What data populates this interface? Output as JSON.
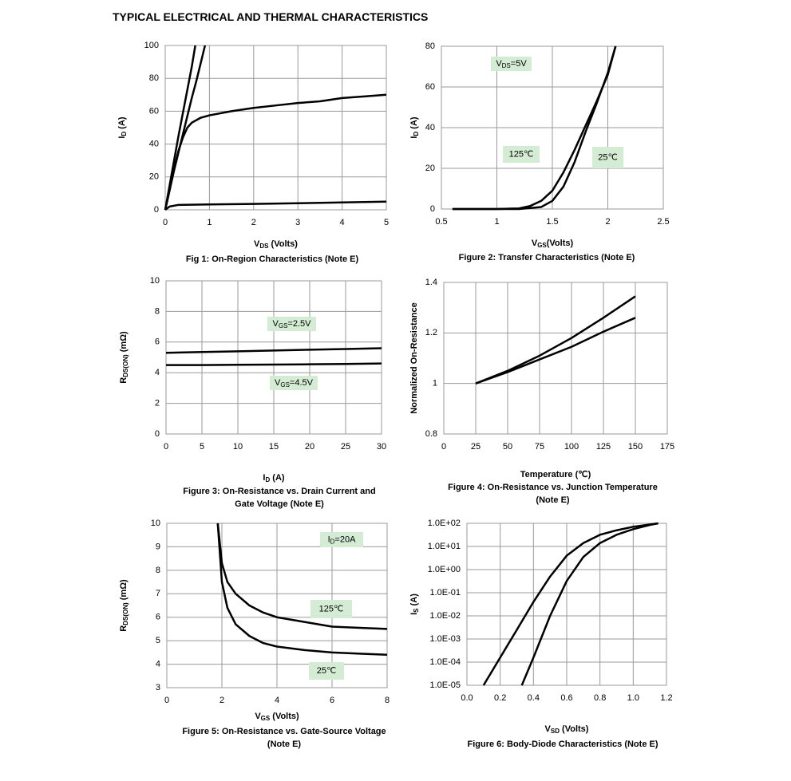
{
  "title": "TYPICAL ELECTRICAL AND THERMAL CHARACTERISTICS",
  "chart_data": [
    {
      "type": "line",
      "title": "Fig 1: On-Region Characteristics (Note E)",
      "xlabel": [
        {
          "text": "V"
        },
        {
          "text": "DS",
          "sub": true
        },
        {
          "text": " (Volts)"
        }
      ],
      "ylabel": [
        {
          "text": "I"
        },
        {
          "text": "D",
          "sub": true
        },
        {
          "text": " (A)"
        }
      ],
      "xlim": [
        0,
        5
      ],
      "ylim": [
        0,
        100
      ],
      "xticks": [
        0,
        1,
        2,
        3,
        4,
        5
      ],
      "yticks": [
        0,
        20,
        40,
        60,
        80,
        100
      ],
      "grid": true,
      "series": [
        {
          "color": "#000000",
          "x": [
            0,
            0.1,
            0.2,
            0.3,
            0.4,
            0.5,
            0.6,
            0.68
          ],
          "values": [
            0,
            15,
            30,
            45,
            59,
            73,
            87,
            100
          ]
        },
        {
          "color": "#000000",
          "x": [
            0,
            0.1,
            0.2,
            0.3,
            0.4,
            0.5,
            0.6,
            0.7,
            0.8,
            0.9
          ],
          "values": [
            0,
            12,
            24,
            35,
            46,
            57,
            68,
            78,
            89,
            100
          ]
        },
        {
          "color": "#000000",
          "x": [
            0,
            0.1,
            0.2,
            0.3,
            0.4,
            0.5,
            0.6,
            0.8,
            1,
            1.5,
            2,
            2.5,
            3,
            3.5,
            4,
            4.5,
            5
          ],
          "values": [
            0,
            12,
            25,
            36,
            44,
            50,
            53,
            56,
            57.5,
            60,
            62,
            63.5,
            65,
            66,
            68,
            69,
            70
          ]
        },
        {
          "color": "#000000",
          "x": [
            0,
            0.1,
            0.3,
            1,
            2,
            3,
            4,
            5
          ],
          "values": [
            0,
            2,
            3,
            3.3,
            3.6,
            4,
            4.5,
            5
          ]
        }
      ]
    },
    {
      "type": "line",
      "title": "Figure 2: Transfer Characteristics (Note E)",
      "xlabel": [
        {
          "text": "V"
        },
        {
          "text": "GS",
          "sub": true
        },
        {
          "text": "(Volts)"
        }
      ],
      "ylabel": [
        {
          "text": "I"
        },
        {
          "text": "D",
          "sub": true
        },
        {
          "text": " (A)"
        }
      ],
      "annotations": [
        [
          {
            "text": "V"
          },
          {
            "text": "DS",
            "sub": true
          },
          {
            "text": "=5V"
          }
        ]
      ],
      "xlim": [
        0.5,
        2.5
      ],
      "ylim": [
        0,
        80
      ],
      "xticks": [
        0.5,
        1,
        1.5,
        2,
        2.5
      ],
      "yticks": [
        0,
        20,
        40,
        60,
        80
      ],
      "grid": true,
      "series": [
        {
          "name": "125℃",
          "color": "#000000",
          "x": [
            0.6,
            1.0,
            1.2,
            1.3,
            1.4,
            1.5,
            1.6,
            1.7,
            1.8,
            1.9,
            2.0,
            2.07
          ],
          "values": [
            0,
            0,
            0.3,
            1.5,
            4,
            9,
            18,
            29,
            41,
            53,
            66,
            80
          ]
        },
        {
          "name": "25℃",
          "color": "#000000",
          "x": [
            0.6,
            1.0,
            1.2,
            1.4,
            1.5,
            1.6,
            1.7,
            1.8,
            1.9,
            2.0,
            2.07
          ],
          "values": [
            0,
            0,
            0,
            1,
            4,
            11,
            23,
            38,
            52,
            67,
            80
          ]
        }
      ]
    },
    {
      "type": "line",
      "title": "Figure 3: On-Resistance vs. Drain Current and Gate Voltage (Note E)",
      "xlabel": [
        {
          "text": "I"
        },
        {
          "text": "D",
          "sub": true
        },
        {
          "text": " (A)"
        }
      ],
      "ylabel": [
        {
          "text": "R"
        },
        {
          "text": "DS(ON)",
          "sub": true
        },
        {
          "text": " (mΩ)"
        }
      ],
      "xlim": [
        0,
        30
      ],
      "ylim": [
        0,
        10
      ],
      "xticks": [
        0,
        5,
        10,
        15,
        20,
        25,
        30
      ],
      "yticks": [
        0,
        2,
        4,
        6,
        8,
        10
      ],
      "grid": true,
      "series": [
        {
          "name": [
            {
              "text": "V"
            },
            {
              "text": "GS",
              "sub": true
            },
            {
              "text": "=2.5V"
            }
          ],
          "color": "#000000",
          "x": [
            0,
            5,
            10,
            15,
            20,
            25,
            30
          ],
          "values": [
            5.3,
            5.35,
            5.4,
            5.45,
            5.5,
            5.55,
            5.6
          ]
        },
        {
          "name": [
            {
              "text": "V"
            },
            {
              "text": "GS",
              "sub": true
            },
            {
              "text": "=4.5V"
            }
          ],
          "color": "#000000",
          "x": [
            0,
            5,
            10,
            15,
            20,
            25,
            30
          ],
          "values": [
            4.5,
            4.5,
            4.52,
            4.53,
            4.55,
            4.57,
            4.6
          ]
        }
      ]
    },
    {
      "type": "line",
      "title": "Figure 4: On-Resistance vs. Junction Temperature (Note E)",
      "xlabel": "Temperature (℃)",
      "ylabel": "Normalized On-Resistance",
      "xlim": [
        0,
        175
      ],
      "ylim": [
        0.8,
        1.4
      ],
      "xticks": [
        0,
        25,
        50,
        75,
        100,
        125,
        150,
        175
      ],
      "yticks": [
        0.8,
        1,
        1.2,
        1.4
      ],
      "grid": true,
      "series": [
        {
          "color": "#000000",
          "x": [
            25,
            50,
            75,
            100,
            125,
            150
          ],
          "values": [
            1,
            1.05,
            1.11,
            1.18,
            1.26,
            1.345
          ]
        },
        {
          "color": "#000000",
          "x": [
            25,
            50,
            75,
            100,
            125,
            150
          ],
          "values": [
            1,
            1.045,
            1.095,
            1.145,
            1.205,
            1.26
          ]
        }
      ]
    },
    {
      "type": "line",
      "title": "Figure 5: On-Resistance vs. Gate-Source Voltage (Note E)",
      "xlabel": [
        {
          "text": "V"
        },
        {
          "text": "GS",
          "sub": true
        },
        {
          "text": " (Volts)"
        }
      ],
      "ylabel": [
        {
          "text": "R"
        },
        {
          "text": "DS(ON)",
          "sub": true
        },
        {
          "text": " (mΩ)"
        }
      ],
      "annotations": [
        [
          {
            "text": "I"
          },
          {
            "text": "D",
            "sub": true
          },
          {
            "text": "=20A"
          }
        ]
      ],
      "xlim": [
        0,
        8
      ],
      "ylim": [
        3,
        10
      ],
      "xticks": [
        0,
        2,
        4,
        6,
        8
      ],
      "yticks": [
        3,
        4,
        5,
        6,
        7,
        8,
        9,
        10
      ],
      "grid": true,
      "series": [
        {
          "name": "125℃",
          "color": "#000000",
          "x": [
            1.85,
            2,
            2.2,
            2.5,
            3,
            3.5,
            4,
            5,
            6,
            7,
            8
          ],
          "values": [
            10,
            8.3,
            7.5,
            7,
            6.5,
            6.2,
            6.0,
            5.8,
            5.6,
            5.55,
            5.5
          ]
        },
        {
          "name": "25℃",
          "color": "#000000",
          "x": [
            1.85,
            2,
            2.2,
            2.5,
            3,
            3.5,
            4,
            5,
            6,
            7,
            8
          ],
          "values": [
            10,
            7.5,
            6.4,
            5.7,
            5.2,
            4.9,
            4.75,
            4.6,
            4.5,
            4.45,
            4.4
          ]
        }
      ]
    },
    {
      "type": "line",
      "title": "Figure 6: Body-Diode Characteristics (Note E)",
      "xlabel": [
        {
          "text": "V"
        },
        {
          "text": "SD",
          "sub": true
        },
        {
          "text": " (Volts)"
        }
      ],
      "ylabel": [
        {
          "text": "I"
        },
        {
          "text": "S",
          "sub": true
        },
        {
          "text": " (A)"
        }
      ],
      "yscale": "log",
      "xlim": [
        0,
        1.2
      ],
      "ylim": [
        1e-05,
        100
      ],
      "xticks": [
        {
          "value": 0,
          "label": "0.0"
        },
        0.2,
        0.4,
        0.6,
        0.8,
        {
          "value": 1,
          "label": "1.0"
        },
        1.2
      ],
      "yticks": [
        {
          "value": 1e-05,
          "label": "1.0E-05"
        },
        {
          "value": 0.0001,
          "label": "1.0E-04"
        },
        {
          "value": 0.001,
          "label": "1.0E-03"
        },
        {
          "value": 0.01,
          "label": "1.0E-02"
        },
        {
          "value": 0.1,
          "label": "1.0E-01"
        },
        {
          "value": 1,
          "label": "1.0E+00"
        },
        {
          "value": 10,
          "label": "1.0E+01"
        },
        {
          "value": 100,
          "label": "1.0E+02"
        }
      ],
      "grid": true,
      "series": [
        {
          "color": "#000000",
          "x": [
            0.1,
            0.2,
            0.3,
            0.4,
            0.5,
            0.6,
            0.7,
            0.8,
            0.9,
            1.0,
            1.1,
            1.15
          ],
          "values": [
            1e-05,
            0.000158,
            0.0025,
            0.04,
            0.5,
            4,
            14,
            32,
            50,
            71,
            89,
            100
          ]
        },
        {
          "color": "#000000",
          "x": [
            0.33,
            0.4,
            0.5,
            0.6,
            0.7,
            0.8,
            0.9,
            1.0,
            1.1,
            1.15
          ],
          "values": [
            1e-05,
            0.000158,
            0.01,
            0.32,
            3.5,
            14,
            32,
            56,
            85,
            100
          ]
        }
      ]
    }
  ]
}
